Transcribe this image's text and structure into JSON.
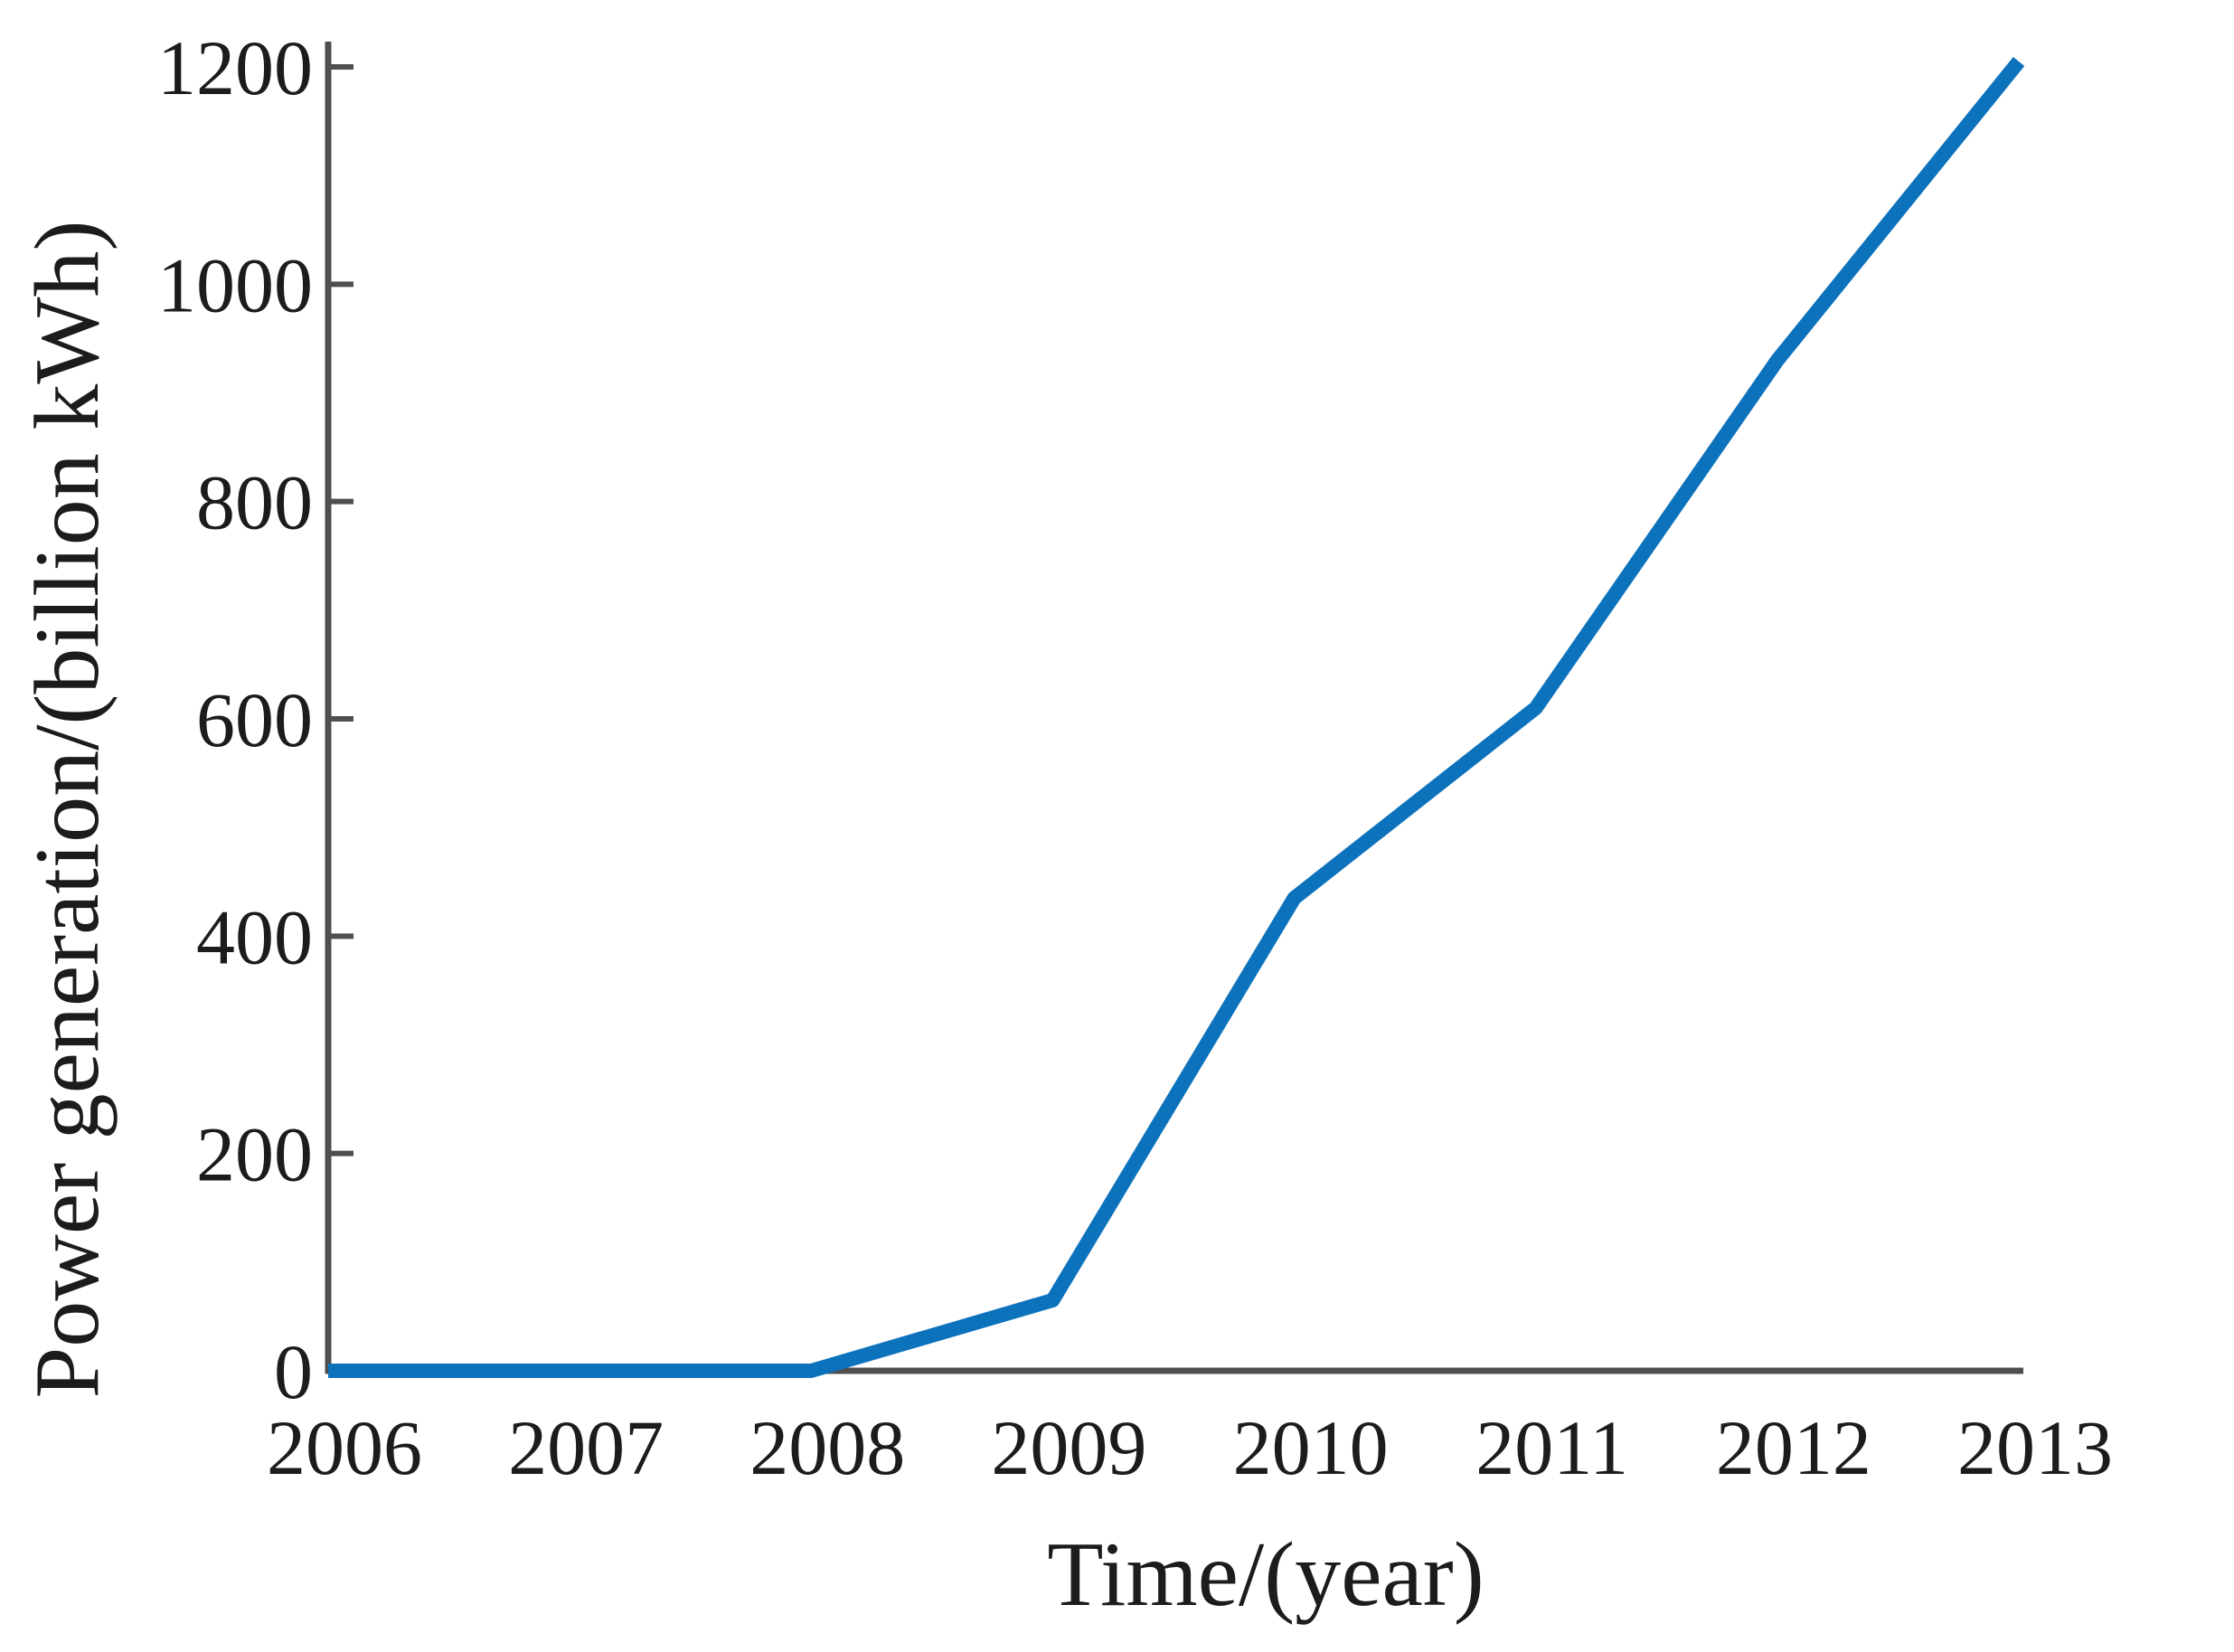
{
  "chart_data": {
    "type": "line",
    "title": "",
    "x": [
      2006,
      2007,
      2008,
      2009,
      2010,
      2011,
      2012,
      2013
    ],
    "series": [
      {
        "name": "Power generation",
        "values": [
          0,
          0,
          0,
          65,
          435,
          610,
          930,
          1205
        ],
        "color": "#0d72bc"
      }
    ],
    "xlabel": "Time/(year)",
    "ylabel": "Power generation/(billion kWh)",
    "xtick_labels": [
      "2006",
      "2007",
      "2008",
      "2009",
      "2010",
      "2011",
      "2012",
      "2013"
    ],
    "yticks": [
      0,
      200,
      400,
      600,
      800,
      1000,
      1200
    ],
    "xlim": [
      2006,
      2013
    ],
    "ylim": [
      0,
      1200
    ],
    "grid": false,
    "legend_position": "none",
    "axis_color": "#4f4f4f",
    "text_color": "#1c1c1c"
  }
}
